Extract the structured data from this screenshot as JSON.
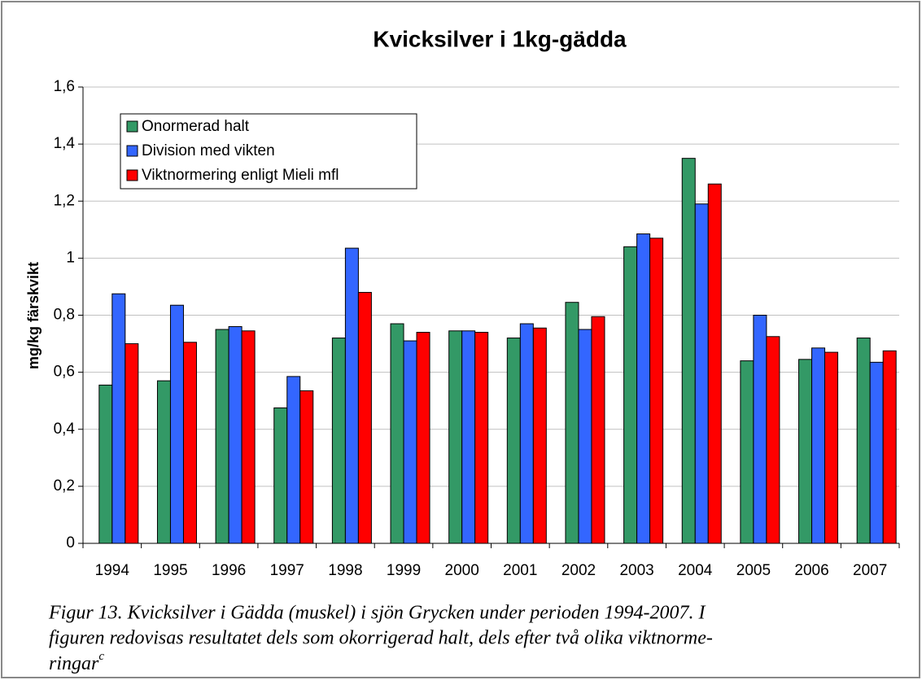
{
  "chart_data": {
    "type": "bar",
    "title": "Kvicksilver i 1kg-gädda",
    "y_label": "mg/kg färskvikt",
    "categories": [
      "1994",
      "1995",
      "1996",
      "1997",
      "1998",
      "1999",
      "2000",
      "2001",
      "2002",
      "2003",
      "2004",
      "2005",
      "2006",
      "2007"
    ],
    "series": [
      {
        "name": "Onormerad halt",
        "color": "#339966",
        "values": [
          0.555,
          0.57,
          0.75,
          0.475,
          0.72,
          0.77,
          0.745,
          0.72,
          0.845,
          1.04,
          1.35,
          0.64,
          0.645,
          0.72
        ]
      },
      {
        "name": "Division med vikten",
        "color": "#3366ff",
        "values": [
          0.875,
          0.835,
          0.76,
          0.585,
          1.035,
          0.71,
          0.745,
          0.77,
          0.75,
          1.085,
          1.19,
          0.8,
          0.685,
          0.635
        ]
      },
      {
        "name": "Viktnormering enligt Mieli mfl",
        "color": "#ff0000",
        "values": [
          0.7,
          0.705,
          0.745,
          0.535,
          0.88,
          0.74,
          0.74,
          0.755,
          0.795,
          1.07,
          1.26,
          0.725,
          0.67,
          0.675
        ]
      }
    ],
    "ylim": [
      0,
      1.6
    ],
    "yticks": [
      0,
      {
        "value": 0.2,
        "label": "0,2"
      },
      {
        "value": 0.4,
        "label": "0,4"
      },
      {
        "value": 0.6,
        "label": "0,6"
      },
      {
        "value": 0.8,
        "label": "0,8"
      },
      1,
      {
        "value": 1.2,
        "label": "1,2"
      },
      {
        "value": 1.4,
        "label": "1,4"
      },
      {
        "value": 1.6,
        "label": "1,6"
      }
    ],
    "grid": true,
    "legend": "upper left"
  },
  "caption": {
    "lines": [
      "Figur 13. Kvicksilver i Gädda (muskel) i sjön Grycken under perioden 1994-2007. I",
      "figuren redovisas resultatet dels som okorrigerad halt, dels efter två olika viktnorme-",
      "ringar"
    ],
    "superscript": "c"
  }
}
